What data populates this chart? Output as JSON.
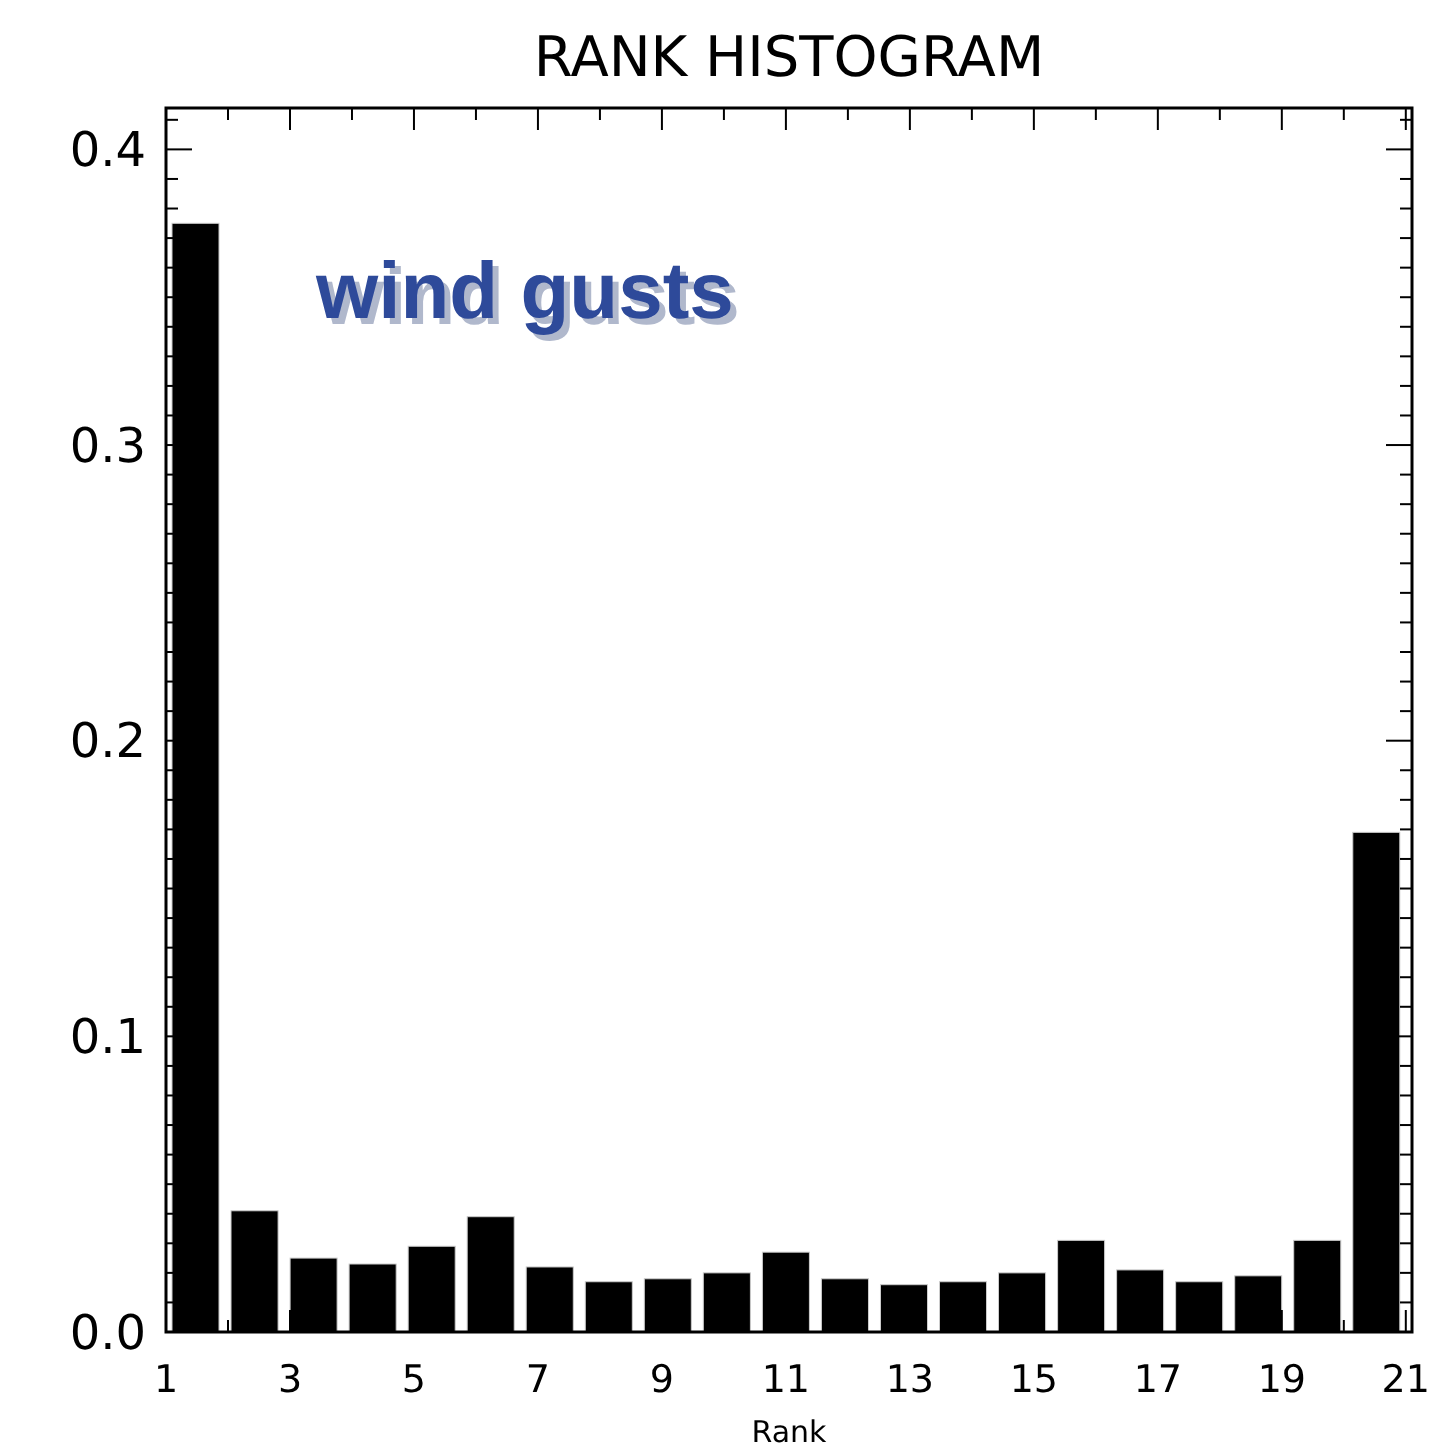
{
  "chart_data": {
    "type": "histogram",
    "title": "RANK HISTOGRAM",
    "xlabel": "Rank",
    "annotations": [
      "wind gusts"
    ],
    "bins": [
      1,
      1.952,
      2.905,
      3.857,
      4.81,
      5.762,
      6.714,
      7.667,
      8.619,
      9.571,
      10.524,
      11.476,
      12.429,
      13.381,
      14.333,
      15.286,
      16.238,
      17.19,
      18.143,
      19.095,
      20.048,
      21
    ],
    "values": [
      0.375,
      0.041,
      0.025,
      0.023,
      0.029,
      0.039,
      0.022,
      0.017,
      0.018,
      0.02,
      0.027,
      0.018,
      0.016,
      0.017,
      0.02,
      0.031,
      0.021,
      0.017,
      0.019,
      0.031,
      0.169
    ],
    "color": "#000000",
    "xlim": [
      1,
      21.1
    ],
    "ylim": [
      0,
      0.414
    ],
    "xticks": [
      1,
      {
        "value": 2,
        "label": null
      },
      3,
      {
        "value": 4,
        "label": null
      },
      5,
      {
        "value": 6,
        "label": null
      },
      7,
      {
        "value": 8,
        "label": null
      },
      9,
      {
        "value": 10,
        "label": null
      },
      11,
      {
        "value": 12,
        "label": null
      },
      13,
      {
        "value": 14,
        "label": null
      },
      15,
      {
        "value": 16,
        "label": null
      },
      17,
      {
        "value": 18,
        "label": null
      },
      19,
      {
        "value": 20,
        "label": null
      },
      21
    ],
    "yticks": [
      {
        "value": 0,
        "label": "0.0"
      },
      {
        "value": 0.1,
        "label": "0.1"
      },
      {
        "value": 0.2,
        "label": "0.2"
      },
      {
        "value": 0.3,
        "label": "0.3"
      },
      {
        "value": 0.4,
        "label": "0.4"
      }
    ],
    "grid": false
  }
}
